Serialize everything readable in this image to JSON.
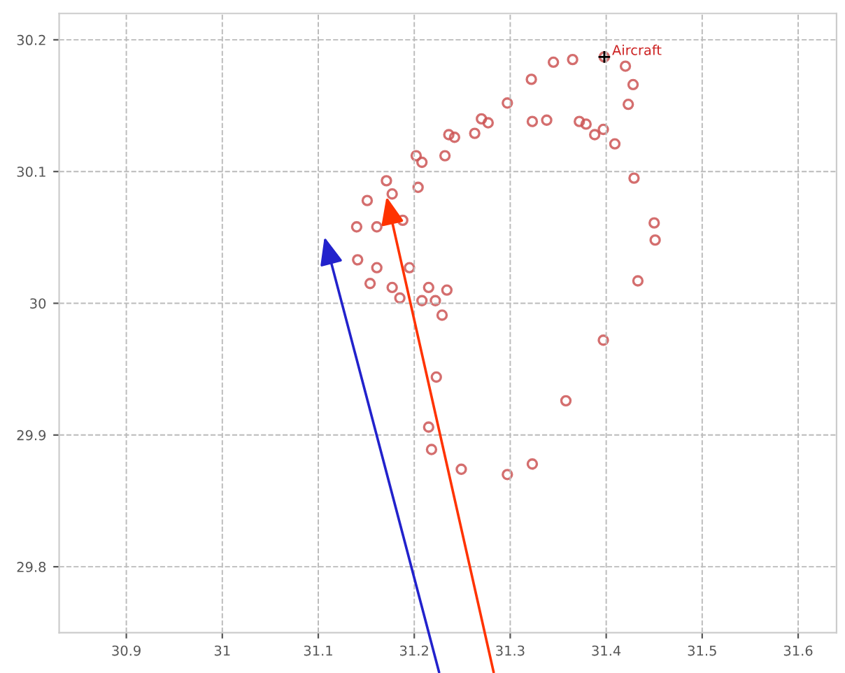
{
  "chart_data": {
    "type": "scatter",
    "marker": "circle",
    "grid": true,
    "xlim": [
      30.83,
      31.64
    ],
    "ylim": [
      29.75,
      30.22
    ],
    "xticks": [
      30.9,
      31,
      31.1,
      31.2,
      31.3,
      31.4,
      31.5,
      31.6
    ],
    "yticks": [
      29.8,
      29.9,
      30,
      30.1,
      30.2
    ],
    "annotations": [
      {
        "text": "Aircraft",
        "x": 31.398,
        "y": 30.187
      }
    ],
    "series": [
      {
        "color": "#cc5555",
        "x": [
          31.398,
          31.365,
          31.345,
          31.322,
          31.297,
          31.27,
          31.236,
          31.202,
          31.171,
          31.151,
          31.14,
          31.141,
          31.154,
          31.185,
          31.222,
          31.234,
          31.388,
          31.379,
          31.338,
          31.277,
          31.242,
          31.208,
          31.177,
          31.161,
          31.161,
          31.177,
          31.208,
          31.372,
          31.323,
          31.263,
          31.232,
          31.204,
          31.188,
          31.195,
          31.215,
          31.409,
          31.429,
          31.45,
          31.451,
          31.433,
          31.397,
          31.358,
          31.323,
          31.297,
          31.249,
          31.218,
          31.215,
          31.223,
          31.229,
          31.397,
          31.423,
          31.428,
          31.42
        ],
        "values": [
          30.187,
          30.185,
          30.183,
          30.17,
          30.152,
          30.14,
          30.128,
          30.112,
          30.093,
          30.078,
          30.058,
          30.033,
          30.015,
          30.004,
          30.002,
          30.01,
          30.128,
          30.136,
          30.139,
          30.137,
          30.126,
          30.107,
          30.083,
          30.058,
          30.027,
          30.012,
          30.002,
          30.138,
          30.138,
          30.129,
          30.112,
          30.088,
          30.063,
          30.027,
          30.012,
          30.121,
          30.095,
          30.061,
          30.048,
          30.017,
          29.972,
          29.926,
          29.878,
          29.87,
          29.874,
          29.889,
          29.906,
          29.944,
          29.991,
          30.132,
          30.151,
          30.166,
          30.18
        ]
      }
    ]
  }
}
